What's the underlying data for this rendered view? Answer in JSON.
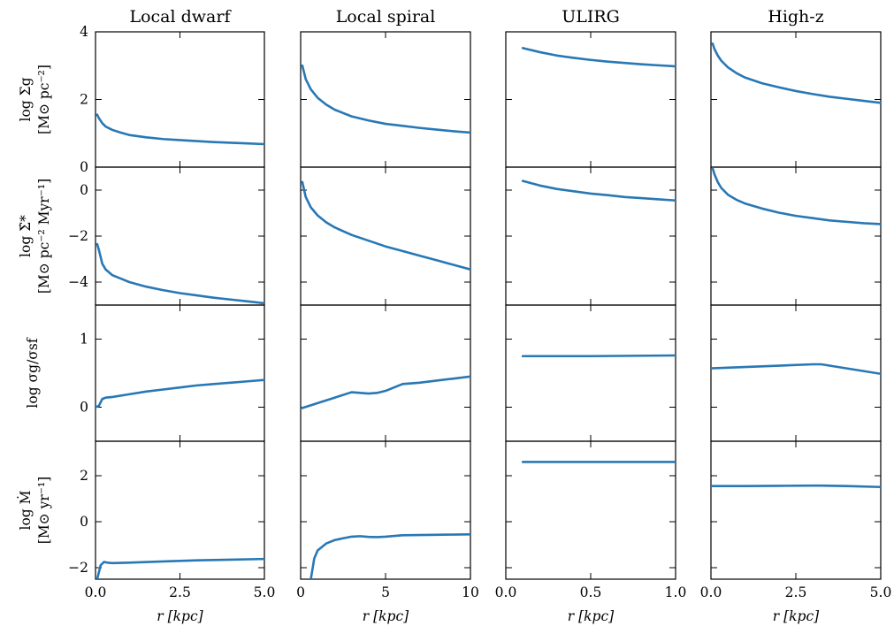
{
  "colors": {
    "line": "#2878b5",
    "axes": "#000000"
  },
  "columns": [
    {
      "title": "Local dwarf",
      "xlabel": "r [kpc]",
      "xlim": [
        0,
        5
      ],
      "xticks": [
        0,
        2.5,
        5
      ],
      "xticklabels": [
        "0.0",
        "2.5",
        "5.0"
      ]
    },
    {
      "title": "Local spiral",
      "xlabel": "r [kpc]",
      "xlim": [
        0,
        10
      ],
      "xticks": [
        0,
        5,
        10
      ],
      "xticklabels": [
        "0",
        "5",
        "10"
      ]
    },
    {
      "title": "ULIRG",
      "xlabel": "r [kpc]",
      "xlim": [
        0,
        1
      ],
      "xticks": [
        0,
        0.5,
        1
      ],
      "xticklabels": [
        "0.0",
        "0.5",
        "1.0"
      ]
    },
    {
      "title": "High-z",
      "xlabel": "r [kpc]",
      "xlim": [
        0,
        5
      ],
      "xticks": [
        0,
        2.5,
        5
      ],
      "xticklabels": [
        "0.0",
        "2.5",
        "5.0"
      ]
    }
  ],
  "rows": [
    {
      "ylabel_line1": "log Σg",
      "ylabel_line2": "[M⊙ pc⁻²]",
      "ylim": [
        0,
        4
      ],
      "yticks": [
        0,
        2,
        4
      ],
      "yticklabels": [
        "0",
        "2",
        "4"
      ]
    },
    {
      "ylabel_line1": "log Σ̇*",
      "ylabel_line2": "[M⊙ pc⁻² Myr⁻¹]",
      "ylim": [
        -5,
        1
      ],
      "yticks": [
        -4,
        -2,
        0
      ],
      "yticklabels": [
        "−4",
        "−2",
        "0"
      ]
    },
    {
      "ylabel_line1": "log σg/σsf",
      "ylabel_line2": "",
      "ylim": [
        -0.5,
        1.5
      ],
      "yticks": [
        0,
        1
      ],
      "yticklabels": [
        "0",
        "1"
      ]
    },
    {
      "ylabel_line1": "log Ṁ",
      "ylabel_line2": "[M⊙ yr⁻¹]",
      "ylim": [
        -2.5,
        3.5
      ],
      "yticks": [
        -2,
        0,
        2
      ],
      "yticklabels": [
        "−2",
        "0",
        "2"
      ]
    }
  ],
  "chart_data": {
    "type": "line",
    "series": [
      {
        "row": 0,
        "col": 0,
        "x": [
          0.05,
          0.1,
          0.2,
          0.3,
          0.5,
          0.75,
          1,
          1.5,
          2,
          2.5,
          3,
          3.5,
          4,
          4.5,
          5
        ],
        "y": [
          1.55,
          1.45,
          1.3,
          1.2,
          1.1,
          1.02,
          0.95,
          0.88,
          0.83,
          0.8,
          0.77,
          0.74,
          0.72,
          0.7,
          0.68
        ]
      },
      {
        "row": 0,
        "col": 1,
        "x": [
          0.1,
          0.3,
          0.6,
          1,
          1.5,
          2,
          3,
          4,
          5,
          6,
          7,
          8,
          9,
          10
        ],
        "y": [
          3.0,
          2.6,
          2.3,
          2.05,
          1.85,
          1.7,
          1.5,
          1.38,
          1.28,
          1.22,
          1.16,
          1.11,
          1.06,
          1.02
        ]
      },
      {
        "row": 0,
        "col": 2,
        "x": [
          0.1,
          0.2,
          0.3,
          0.4,
          0.5,
          0.6,
          0.7,
          0.8,
          0.9,
          1.0
        ],
        "y": [
          3.52,
          3.4,
          3.3,
          3.23,
          3.17,
          3.12,
          3.08,
          3.04,
          3.01,
          2.98
        ]
      },
      {
        "row": 0,
        "col": 3,
        "x": [
          0.05,
          0.1,
          0.2,
          0.3,
          0.5,
          0.75,
          1,
          1.5,
          2,
          2.5,
          3,
          3.5,
          4,
          4.5,
          5
        ],
        "y": [
          3.65,
          3.5,
          3.3,
          3.15,
          2.95,
          2.78,
          2.65,
          2.48,
          2.36,
          2.25,
          2.16,
          2.08,
          2.02,
          1.96,
          1.9
        ]
      },
      {
        "row": 1,
        "col": 0,
        "x": [
          0.05,
          0.1,
          0.2,
          0.3,
          0.5,
          0.75,
          1,
          1.5,
          2,
          2.5,
          3,
          3.5,
          4,
          4.5,
          5
        ],
        "y": [
          -2.35,
          -2.6,
          -3.2,
          -3.45,
          -3.7,
          -3.85,
          -4.0,
          -4.2,
          -4.35,
          -4.48,
          -4.58,
          -4.68,
          -4.76,
          -4.84,
          -4.92
        ]
      },
      {
        "row": 1,
        "col": 1,
        "x": [
          0.1,
          0.3,
          0.6,
          1,
          1.5,
          2,
          3,
          4,
          5,
          6,
          7,
          8,
          9,
          10
        ],
        "y": [
          0.35,
          -0.3,
          -0.75,
          -1.1,
          -1.4,
          -1.62,
          -1.95,
          -2.2,
          -2.45,
          -2.65,
          -2.85,
          -3.05,
          -3.25,
          -3.45
        ]
      },
      {
        "row": 1,
        "col": 2,
        "x": [
          0.1,
          0.2,
          0.3,
          0.4,
          0.5,
          0.6,
          0.7,
          0.8,
          0.9,
          1.0
        ],
        "y": [
          0.4,
          0.2,
          0.05,
          -0.05,
          -0.15,
          -0.22,
          -0.3,
          -0.35,
          -0.4,
          -0.45
        ]
      },
      {
        "row": 1,
        "col": 3,
        "x": [
          0.05,
          0.1,
          0.2,
          0.3,
          0.5,
          0.75,
          1,
          1.5,
          2,
          2.5,
          3,
          3.5,
          4,
          4.5,
          5
        ],
        "y": [
          0.95,
          0.7,
          0.35,
          0.1,
          -0.2,
          -0.42,
          -0.58,
          -0.8,
          -0.98,
          -1.12,
          -1.22,
          -1.32,
          -1.38,
          -1.44,
          -1.48
        ]
      },
      {
        "row": 2,
        "col": 0,
        "x": [
          0,
          0.1,
          0.2,
          0.3,
          0.5,
          1,
          1.5,
          2,
          2.5,
          3,
          3.5,
          4,
          4.5,
          5
        ],
        "y": [
          0,
          0.02,
          0.12,
          0.14,
          0.15,
          0.19,
          0.23,
          0.26,
          0.29,
          0.32,
          0.34,
          0.36,
          0.38,
          0.4
        ]
      },
      {
        "row": 2,
        "col": 1,
        "x": [
          0,
          1,
          2,
          3,
          3.5,
          4,
          4.5,
          5,
          5.5,
          6,
          7,
          8,
          9,
          10
        ],
        "y": [
          -0.02,
          0.06,
          0.14,
          0.22,
          0.21,
          0.2,
          0.21,
          0.24,
          0.29,
          0.34,
          0.36,
          0.39,
          0.42,
          0.45
        ]
      },
      {
        "row": 2,
        "col": 2,
        "x": [
          0.1,
          0.5,
          1.0
        ],
        "y": [
          0.75,
          0.75,
          0.76
        ]
      },
      {
        "row": 2,
        "col": 3,
        "x": [
          0,
          1,
          2,
          3,
          3.25,
          4,
          5
        ],
        "y": [
          0.57,
          0.59,
          0.61,
          0.63,
          0.63,
          0.57,
          0.49
        ]
      },
      {
        "row": 3,
        "col": 0,
        "x": [
          0.05,
          0.1,
          0.15,
          0.25,
          0.35,
          0.5,
          1,
          2,
          3,
          4,
          5
        ],
        "y": [
          -2.5,
          -2.2,
          -1.9,
          -1.75,
          -1.78,
          -1.8,
          -1.78,
          -1.73,
          -1.68,
          -1.65,
          -1.62
        ]
      },
      {
        "row": 3,
        "col": 1,
        "x": [
          0.6,
          0.8,
          1,
          1.5,
          2,
          2.5,
          3,
          3.5,
          4,
          4.5,
          5,
          6,
          7,
          8,
          9,
          10
        ],
        "y": [
          -2.5,
          -1.6,
          -1.25,
          -0.95,
          -0.8,
          -0.72,
          -0.65,
          -0.63,
          -0.66,
          -0.67,
          -0.65,
          -0.59,
          -0.58,
          -0.57,
          -0.56,
          -0.55
        ]
      },
      {
        "row": 3,
        "col": 2,
        "x": [
          0.1,
          0.5,
          1.0
        ],
        "y": [
          2.6,
          2.6,
          2.6
        ]
      },
      {
        "row": 3,
        "col": 3,
        "x": [
          0,
          1,
          2,
          3,
          3.25,
          4,
          5
        ],
        "y": [
          1.55,
          1.55,
          1.56,
          1.57,
          1.57,
          1.55,
          1.51
        ]
      }
    ]
  }
}
